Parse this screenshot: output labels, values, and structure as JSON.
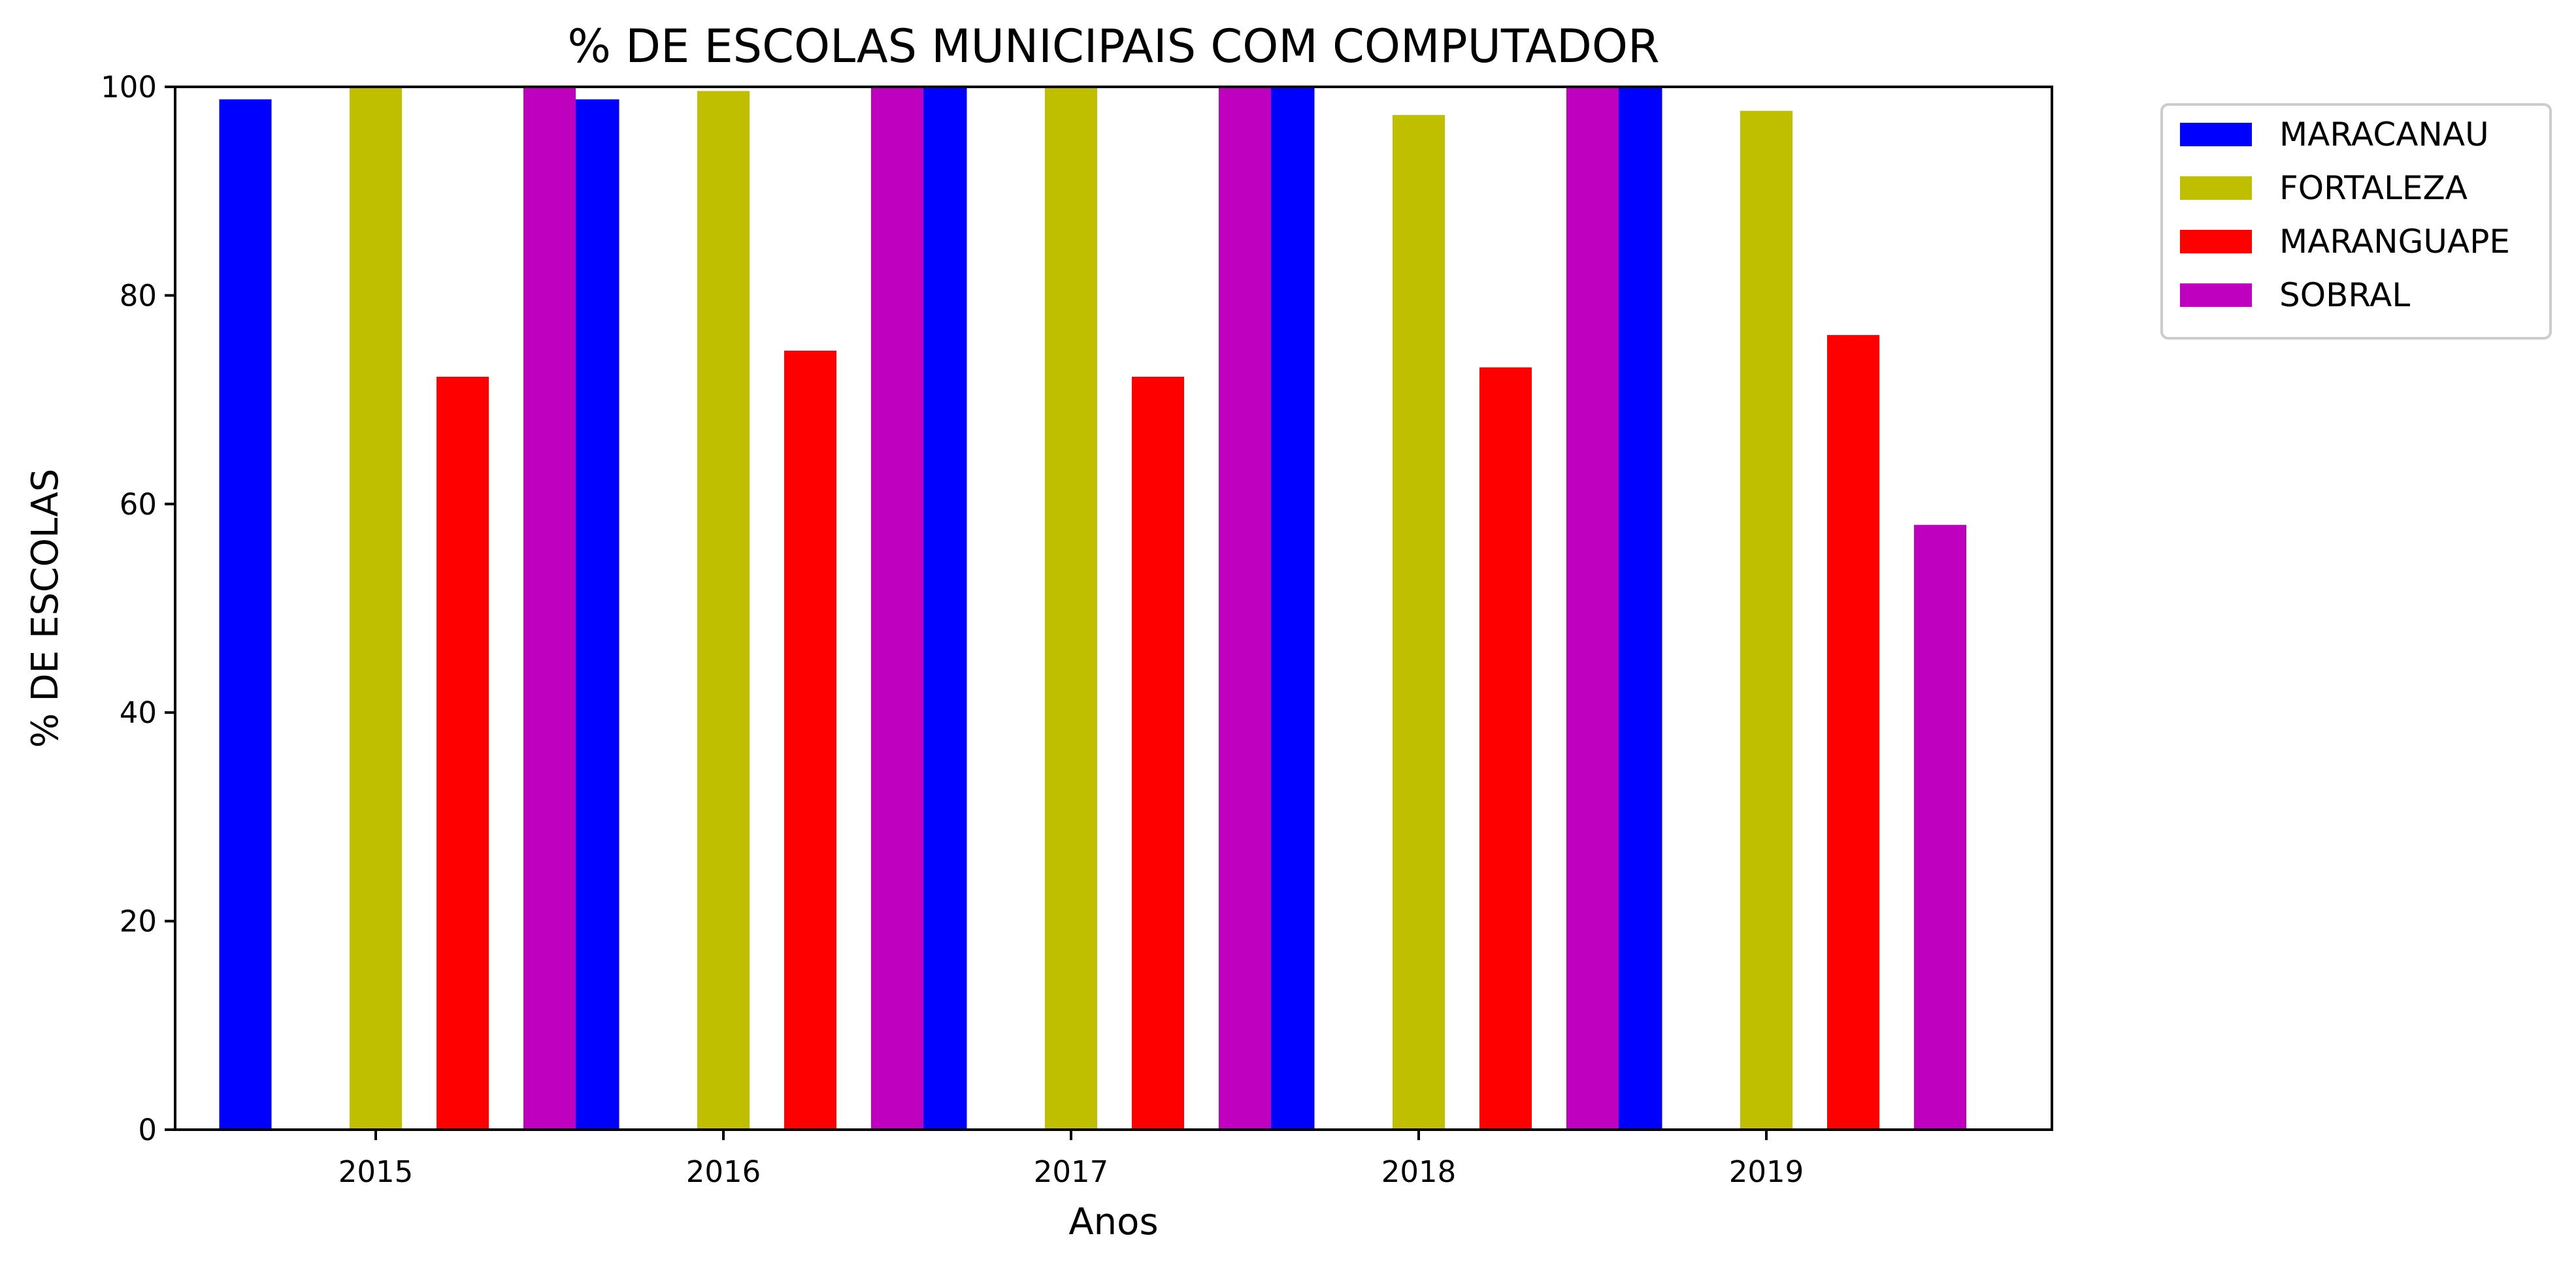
{
  "chart_data": {
    "type": "bar",
    "title": "% DE ESCOLAS MUNICIPAIS COM COMPUTADOR",
    "xlabel": "Anos",
    "ylabel": "% DE ESCOLAS",
    "categories": [
      "2015",
      "2016",
      "2017",
      "2018",
      "2019"
    ],
    "ylim": [
      0,
      100
    ],
    "yticks": [
      0,
      20,
      40,
      60,
      80,
      100
    ],
    "grid": false,
    "legend_position": "outside-top-right",
    "series": [
      {
        "name": "MARACANAU",
        "color": "#0000ff",
        "values": [
          98.8,
          98.8,
          100,
          100,
          100
        ]
      },
      {
        "name": "FORTALEZA",
        "color": "#bfbf00",
        "values": [
          100,
          99.6,
          100,
          97.3,
          97.7
        ]
      },
      {
        "name": "MARANGUAPE",
        "color": "#ff0000",
        "values": [
          72.2,
          74.7,
          72.2,
          73.1,
          76.2
        ]
      },
      {
        "name": "SOBRAL",
        "color": "#bf00bf",
        "values": [
          100,
          100,
          100,
          100,
          58.0
        ]
      }
    ]
  }
}
